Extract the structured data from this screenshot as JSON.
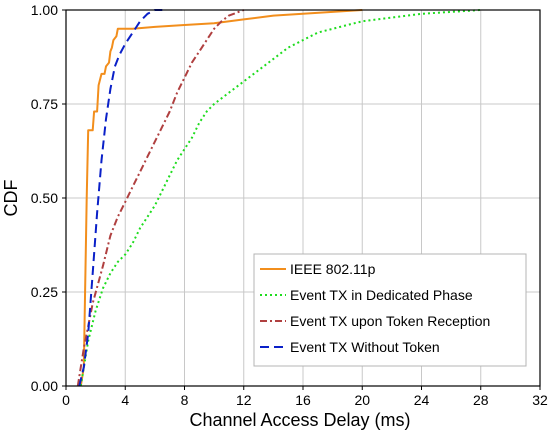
{
  "chart_data": {
    "type": "line",
    "xlabel": "Channel Access Delay (ms)",
    "ylabel": "CDF",
    "xlim": [
      0,
      32
    ],
    "ylim": [
      0,
      1
    ],
    "x_ticks": [
      "0",
      "4",
      "8",
      "12",
      "16",
      "20",
      "24",
      "28",
      "32"
    ],
    "y_ticks": [
      "0.00",
      "0.25",
      "0.50",
      "0.75",
      "1.00"
    ],
    "grid": true,
    "legend_position": "bottom-right",
    "series": [
      {
        "name": "IEEE 802.11p",
        "color": "#f28e1c",
        "dash": "solid",
        "points": [
          [
            1.0,
            0
          ],
          [
            1.2,
            0.05
          ],
          [
            1.4,
            0.5
          ],
          [
            1.5,
            0.68
          ],
          [
            1.8,
            0.68
          ],
          [
            1.9,
            0.73
          ],
          [
            2.1,
            0.73
          ],
          [
            2.2,
            0.8
          ],
          [
            2.4,
            0.83
          ],
          [
            2.6,
            0.83
          ],
          [
            2.7,
            0.85
          ],
          [
            2.9,
            0.86
          ],
          [
            3.0,
            0.89
          ],
          [
            3.1,
            0.9
          ],
          [
            3.2,
            0.92
          ],
          [
            3.4,
            0.93
          ],
          [
            3.5,
            0.95
          ],
          [
            4.5,
            0.95
          ],
          [
            6,
            0.955
          ],
          [
            8,
            0.96
          ],
          [
            10,
            0.965
          ],
          [
            12,
            0.975
          ],
          [
            14,
            0.985
          ],
          [
            16,
            0.99
          ],
          [
            18,
            0.995
          ],
          [
            20,
            1.0
          ]
        ]
      },
      {
        "name": "Event TX in Dedicated Phase",
        "color": "#1edc1e",
        "dash": "dotted",
        "points": [
          [
            1.0,
            0
          ],
          [
            1.5,
            0.12
          ],
          [
            2,
            0.2
          ],
          [
            2.5,
            0.26
          ],
          [
            3,
            0.3
          ],
          [
            3.5,
            0.33
          ],
          [
            4,
            0.35
          ],
          [
            4.5,
            0.38
          ],
          [
            5,
            0.42
          ],
          [
            5.5,
            0.45
          ],
          [
            6,
            0.48
          ],
          [
            6.5,
            0.52
          ],
          [
            7,
            0.56
          ],
          [
            7.5,
            0.6
          ],
          [
            8,
            0.63
          ],
          [
            8.5,
            0.66
          ],
          [
            9,
            0.7
          ],
          [
            9.5,
            0.73
          ],
          [
            10,
            0.75
          ],
          [
            11,
            0.78
          ],
          [
            12,
            0.81
          ],
          [
            13,
            0.84
          ],
          [
            14,
            0.87
          ],
          [
            15,
            0.9
          ],
          [
            16,
            0.92
          ],
          [
            17,
            0.94
          ],
          [
            18,
            0.95
          ],
          [
            19,
            0.96
          ],
          [
            20,
            0.97
          ],
          [
            22,
            0.98
          ],
          [
            24,
            0.99
          ],
          [
            26,
            0.995
          ],
          [
            28,
            1.0
          ]
        ]
      },
      {
        "name": "Event TX upon Token Reception",
        "color": "#b04040",
        "dash": "dashdot",
        "points": [
          [
            0.8,
            0
          ],
          [
            1.2,
            0.1
          ],
          [
            1.8,
            0.22
          ],
          [
            2.5,
            0.32
          ],
          [
            3,
            0.4
          ],
          [
            3.5,
            0.45
          ],
          [
            4,
            0.49
          ],
          [
            4.5,
            0.53
          ],
          [
            5,
            0.57
          ],
          [
            5.5,
            0.61
          ],
          [
            6,
            0.65
          ],
          [
            6.5,
            0.69
          ],
          [
            7,
            0.73
          ],
          [
            7.5,
            0.78
          ],
          [
            8,
            0.82
          ],
          [
            8.5,
            0.86
          ],
          [
            9,
            0.89
          ],
          [
            9.5,
            0.92
          ],
          [
            10,
            0.95
          ],
          [
            10.5,
            0.97
          ],
          [
            11,
            0.985
          ],
          [
            12,
            1.0
          ]
        ]
      },
      {
        "name": "Event TX Without Token",
        "color": "#0a20c8",
        "dash": "dashed",
        "points": [
          [
            0.9,
            0
          ],
          [
            1.2,
            0.05
          ],
          [
            1.5,
            0.14
          ],
          [
            1.8,
            0.3
          ],
          [
            2.1,
            0.46
          ],
          [
            2.4,
            0.6
          ],
          [
            2.7,
            0.71
          ],
          [
            3.0,
            0.79
          ],
          [
            3.3,
            0.85
          ],
          [
            3.6,
            0.88
          ],
          [
            4.0,
            0.91
          ],
          [
            4.5,
            0.94
          ],
          [
            5,
            0.97
          ],
          [
            5.5,
            0.99
          ],
          [
            6,
            1.0
          ],
          [
            6.5,
            1.0
          ]
        ]
      }
    ]
  }
}
